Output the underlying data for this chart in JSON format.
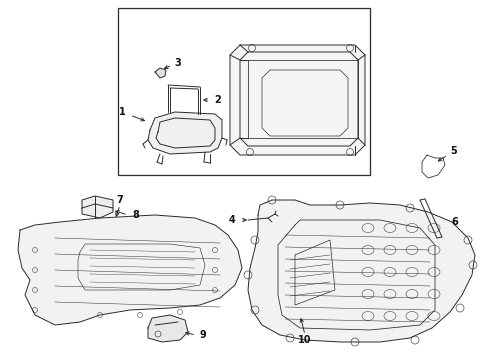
{
  "bg_color": "#ffffff",
  "line_color": "#2a2a2a",
  "label_color": "#111111",
  "lw": 0.7,
  "fig_w": 4.9,
  "fig_h": 3.6,
  "dpi": 100
}
